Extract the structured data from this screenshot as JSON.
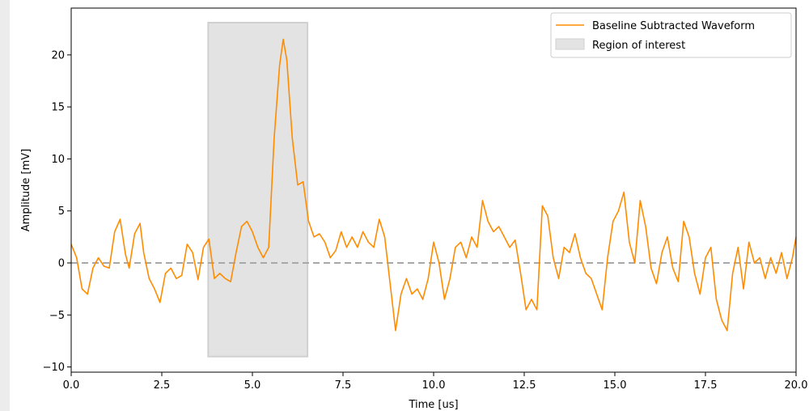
{
  "chart_data": {
    "type": "line",
    "title": "",
    "xlabel": "Time [us]",
    "ylabel": "Amplitude [mV]",
    "xlim": [
      0,
      20
    ],
    "ylim": [
      -10.5,
      24.5
    ],
    "x_ticks": [
      0,
      2.5,
      5,
      7.5,
      10,
      12.5,
      15,
      17.5,
      20
    ],
    "x_tick_labels": [
      "0.0",
      "2.5",
      "5.0",
      "7.5",
      "10.0",
      "12.5",
      "15.0",
      "17.5",
      "20.0"
    ],
    "y_ticks": [
      -10,
      -5,
      0,
      5,
      10,
      15,
      20
    ],
    "y_tick_labels": [
      "−10",
      "−5",
      "0",
      "5",
      "10",
      "15",
      "20"
    ],
    "grid": false,
    "legend_position": "top-right",
    "series": [
      {
        "name": "Baseline Subtracted Waveform",
        "color": "#ff8c00",
        "x": [
          0,
          0.15,
          0.3,
          0.45,
          0.6,
          0.75,
          0.9,
          1.05,
          1.2,
          1.35,
          1.5,
          1.6,
          1.75,
          1.9,
          2.0,
          2.15,
          2.3,
          2.45,
          2.6,
          2.75,
          2.9,
          3.05,
          3.2,
          3.35,
          3.5,
          3.65,
          3.8,
          3.95,
          4.1,
          4.25,
          4.4,
          4.55,
          4.7,
          4.85,
          5.0,
          5.15,
          5.3,
          5.45,
          5.6,
          5.75,
          5.85,
          5.95,
          6.1,
          6.25,
          6.4,
          6.55,
          6.7,
          6.85,
          7.0,
          7.15,
          7.3,
          7.45,
          7.6,
          7.75,
          7.9,
          8.05,
          8.2,
          8.35,
          8.5,
          8.65,
          8.8,
          8.95,
          9.1,
          9.25,
          9.4,
          9.55,
          9.7,
          9.85,
          10.0,
          10.15,
          10.3,
          10.45,
          10.6,
          10.75,
          10.9,
          11.05,
          11.2,
          11.35,
          11.5,
          11.65,
          11.8,
          11.95,
          12.1,
          12.25,
          12.4,
          12.55,
          12.7,
          12.85,
          13.0,
          13.15,
          13.3,
          13.45,
          13.6,
          13.75,
          13.9,
          14.05,
          14.2,
          14.35,
          14.5,
          14.65,
          14.8,
          14.95,
          15.1,
          15.25,
          15.4,
          15.55,
          15.7,
          15.85,
          16.0,
          16.15,
          16.3,
          16.45,
          16.6,
          16.75,
          16.9,
          17.05,
          17.2,
          17.35,
          17.5,
          17.65,
          17.8,
          17.95,
          18.1,
          18.25,
          18.4,
          18.55,
          18.7,
          18.85,
          19.0,
          19.15,
          19.3,
          19.45,
          19.6,
          19.75,
          19.9,
          20.0
        ],
        "y": [
          1.8,
          0.5,
          -2.5,
          -3.0,
          -0.5,
          0.5,
          -0.3,
          -0.5,
          3.0,
          4.2,
          0.8,
          -0.5,
          2.8,
          3.8,
          1.0,
          -1.5,
          -2.5,
          -3.8,
          -1.0,
          -0.5,
          -1.5,
          -1.2,
          1.8,
          1.0,
          -1.6,
          1.5,
          2.3,
          -1.5,
          -1.0,
          -1.5,
          -1.8,
          1.0,
          3.5,
          4.0,
          3.0,
          1.5,
          0.5,
          1.5,
          12.0,
          19.0,
          21.5,
          19.5,
          12.0,
          7.5,
          7.8,
          4.0,
          2.5,
          2.8,
          2.0,
          0.5,
          1.2,
          3.0,
          1.5,
          2.5,
          1.5,
          3.0,
          2.0,
          1.5,
          4.2,
          2.5,
          -2.0,
          -6.5,
          -3.0,
          -1.5,
          -3.0,
          -2.5,
          -3.5,
          -1.5,
          2.0,
          0.0,
          -3.5,
          -1.5,
          1.5,
          2.0,
          0.5,
          2.5,
          1.5,
          6.0,
          4.0,
          3.0,
          3.5,
          2.5,
          1.5,
          2.2,
          -1.0,
          -4.5,
          -3.5,
          -4.5,
          5.5,
          4.5,
          0.5,
          -1.5,
          1.5,
          1.0,
          2.8,
          0.5,
          -1.0,
          -1.5,
          -3.0,
          -4.5,
          0.5,
          4.0,
          5.0,
          6.8,
          2.0,
          0.0,
          6.0,
          3.5,
          -0.5,
          -2.0,
          1.0,
          2.5,
          -0.5,
          -1.8,
          4.0,
          2.5,
          -1.0,
          -3.0,
          0.5,
          1.5,
          -3.5,
          -5.5,
          -6.5,
          -1.0,
          1.5,
          -2.5,
          2.0,
          0.0,
          0.5,
          -1.5,
          0.5,
          -1.0,
          1.0,
          -1.5,
          0.5,
          2.5
        ]
      }
    ],
    "baseline": {
      "y": 0,
      "style": "dashed",
      "color": "#a8a8a8"
    },
    "region": {
      "name": "Region of interest",
      "x": [
        3.78,
        6.52
      ],
      "y": [
        -9.0,
        23.1
      ],
      "color": "#e3e3e3"
    }
  }
}
